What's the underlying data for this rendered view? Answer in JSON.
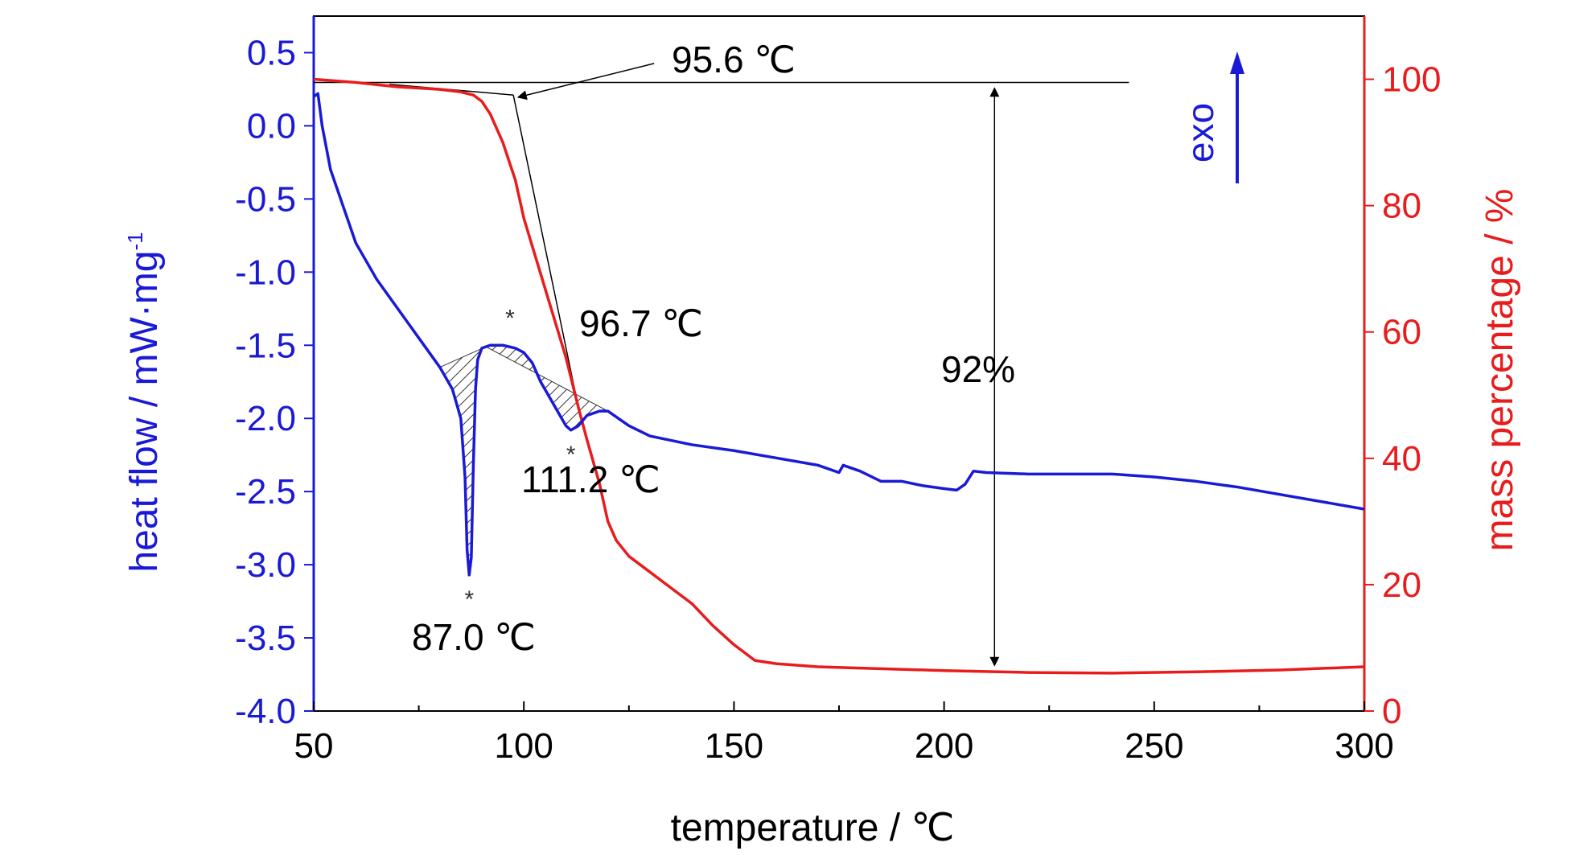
{
  "chart_data": {
    "type": "line",
    "xlabel": "temperature / ℃",
    "ylabel_left": "heat flow / mW·mg",
    "ylabel_left_sup": "-1",
    "ylabel_right": "mass percentage / %",
    "xlim": [
      50,
      300
    ],
    "ylim_left": [
      -4.0,
      0.75
    ],
    "ylim_right": [
      0,
      110
    ],
    "x_ticks": [
      "50",
      "100",
      "150",
      "200",
      "250",
      "300"
    ],
    "y_left_ticks": [
      "0.5",
      "0.0",
      "-0.5",
      "-1.0",
      "-1.5",
      "-2.0",
      "-2.5",
      "-3.0",
      "-3.5",
      "-4.0"
    ],
    "y_right_ticks": [
      "100",
      "80",
      "60",
      "40",
      "20",
      "0"
    ],
    "grid": false,
    "colors": {
      "heat_flow": "#1a1ad6",
      "mass": "#e81c1c",
      "annotation": "#000000"
    },
    "series": [
      {
        "axis": "left",
        "color": "#1a1ad6",
        "x": [
          50,
          51,
          52,
          54,
          57,
          60,
          65,
          70,
          75,
          80,
          83,
          85,
          86,
          86.5,
          87,
          87.5,
          88,
          88.5,
          89,
          90,
          92,
          95,
          98,
          100,
          102,
          104,
          106,
          108,
          110,
          111.2,
          113,
          115,
          118,
          120,
          125,
          130,
          140,
          150,
          160,
          170,
          175,
          176,
          180,
          185,
          190,
          195,
          200,
          203,
          205,
          207,
          210,
          220,
          230,
          240,
          250,
          260,
          270,
          280,
          290,
          300
        ],
        "values": [
          0.2,
          0.22,
          0.0,
          -0.3,
          -0.55,
          -0.8,
          -1.05,
          -1.25,
          -1.45,
          -1.65,
          -1.8,
          -2.0,
          -2.4,
          -2.9,
          -3.07,
          -2.95,
          -2.3,
          -1.8,
          -1.6,
          -1.52,
          -1.5,
          -1.5,
          -1.52,
          -1.55,
          -1.62,
          -1.75,
          -1.85,
          -1.95,
          -2.05,
          -2.08,
          -2.05,
          -1.98,
          -1.95,
          -1.95,
          -2.05,
          -2.12,
          -2.18,
          -2.22,
          -2.27,
          -2.32,
          -2.37,
          -2.32,
          -2.36,
          -2.43,
          -2.43,
          -2.46,
          -2.48,
          -2.49,
          -2.45,
          -2.36,
          -2.37,
          -2.38,
          -2.38,
          -2.38,
          -2.4,
          -2.43,
          -2.47,
          -2.52,
          -2.57,
          -2.62
        ]
      },
      {
        "axis": "right",
        "color": "#e81c1c",
        "x": [
          50,
          60,
          70,
          80,
          85,
          88,
          90,
          92,
          95,
          98,
          100,
          105,
          110,
          113,
          115,
          118,
          120,
          122,
          125,
          130,
          135,
          140,
          145,
          150,
          155,
          160,
          170,
          180,
          200,
          220,
          240,
          260,
          280,
          300
        ],
        "values": [
          100,
          99.5,
          98.8,
          98.4,
          98.0,
          97.5,
          96.5,
          94.5,
          90,
          84,
          78,
          67,
          56,
          48,
          43,
          36,
          30,
          27,
          24.5,
          22,
          19.5,
          17,
          13.5,
          10.5,
          8,
          7.5,
          7,
          6.8,
          6.4,
          6.1,
          6.0,
          6.2,
          6.5,
          7.0
        ]
      }
    ],
    "annotations": {
      "peak1": "87.0 ℃",
      "peak2": "96.7 ℃",
      "peak3": "111.2 ℃",
      "onset": "95.6 ℃",
      "mass_loss": "92%",
      "exo": "exo"
    }
  }
}
